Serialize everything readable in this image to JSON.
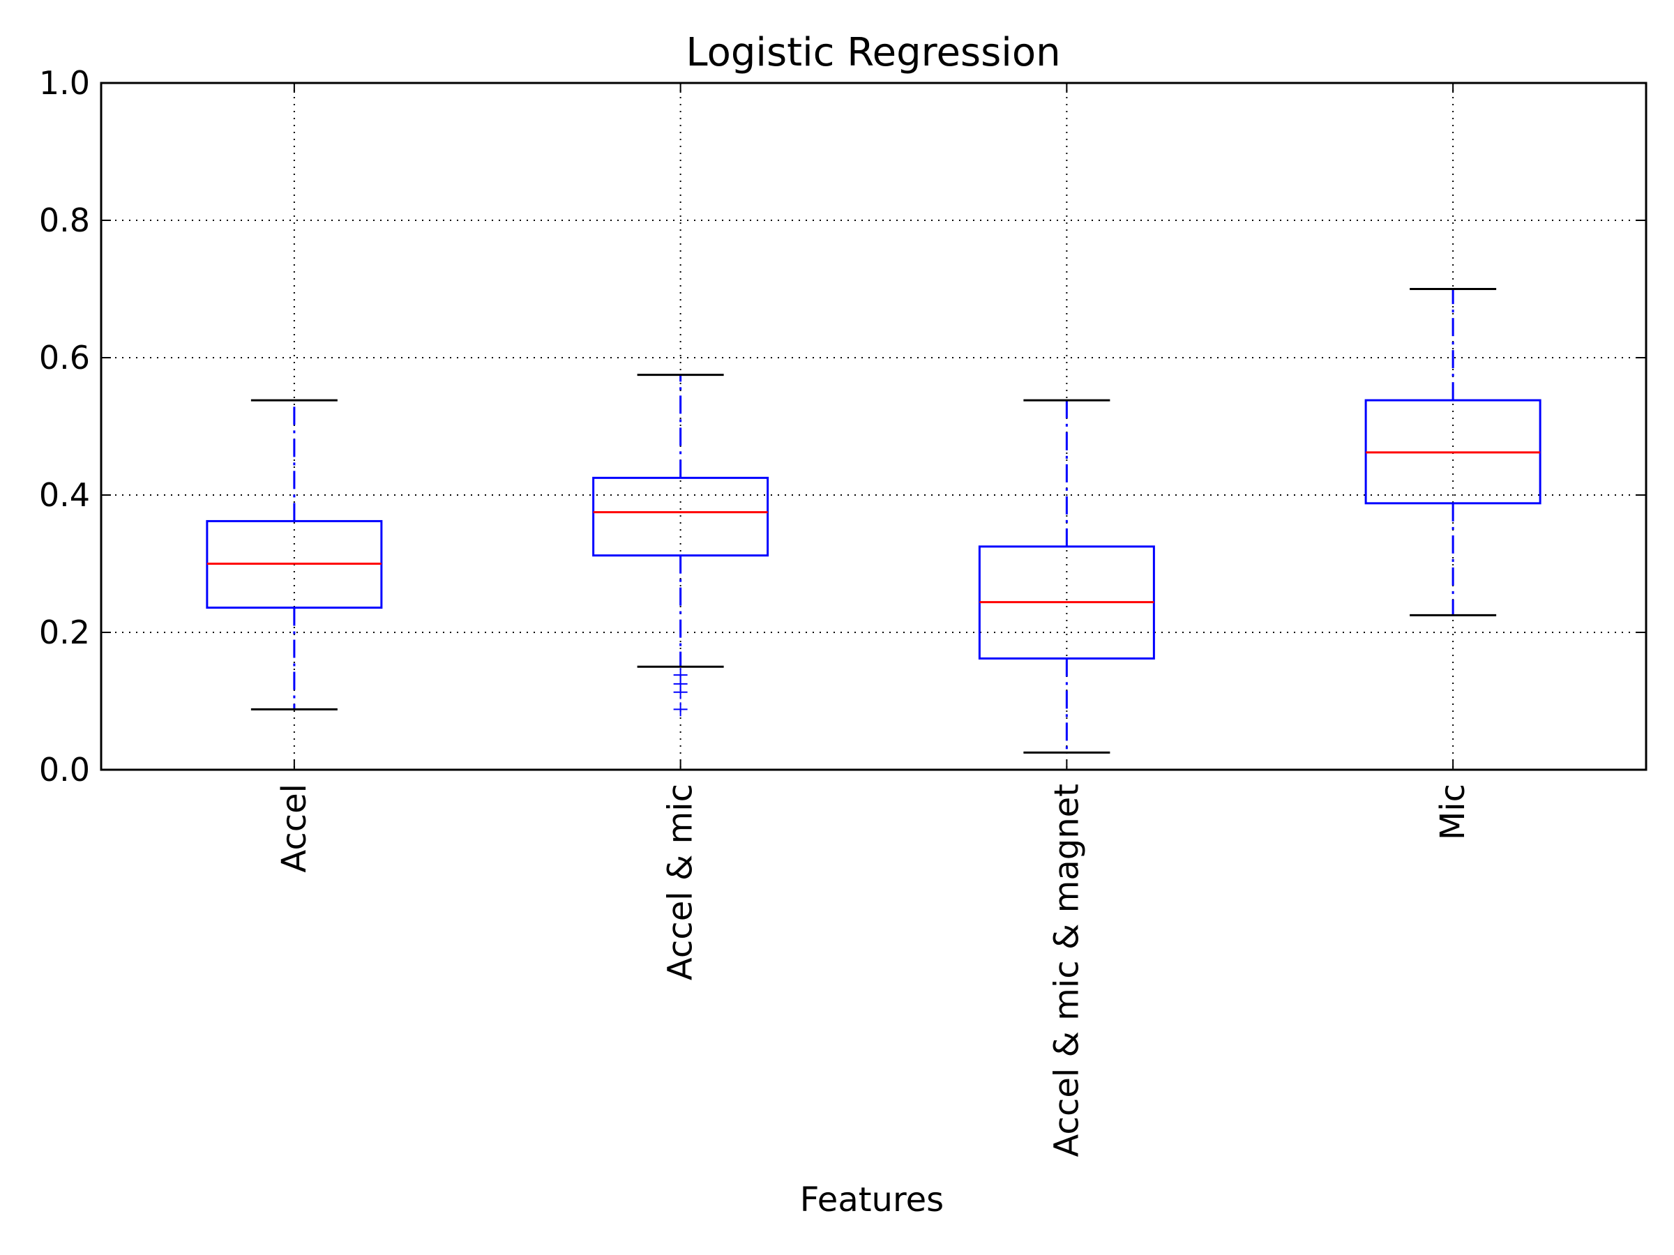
{
  "chart_data": {
    "type": "box",
    "title": "Logistic Regression",
    "xlabel": "Features",
    "ylabel": "",
    "ylim": [
      0.0,
      1.0
    ],
    "yticks": [
      "0.0",
      "0.2",
      "0.4",
      "0.6",
      "0.8",
      "1.0"
    ],
    "grid": true,
    "categories": [
      "Accel",
      "Accel & mic",
      "Accel & mic & magnet",
      "Mic"
    ],
    "boxes": [
      {
        "name": "Accel",
        "whisker_low": 0.088,
        "q1": 0.236,
        "median": 0.3,
        "q3": 0.362,
        "whisker_high": 0.538,
        "outliers": []
      },
      {
        "name": "Accel & mic",
        "whisker_low": 0.15,
        "q1": 0.312,
        "median": 0.375,
        "q3": 0.425,
        "whisker_high": 0.575,
        "outliers": [
          0.138,
          0.125,
          0.113,
          0.088
        ]
      },
      {
        "name": "Accel & mic & magnet",
        "whisker_low": 0.025,
        "q1": 0.162,
        "median": 0.244,
        "q3": 0.325,
        "whisker_high": 0.538,
        "outliers": []
      },
      {
        "name": "Mic",
        "whisker_low": 0.225,
        "q1": 0.388,
        "median": 0.462,
        "q3": 0.538,
        "whisker_high": 0.7,
        "outliers": []
      }
    ],
    "colors": {
      "box": "#0000ff",
      "median": "#ff0000",
      "whisker": "#0000ff",
      "cap": "#000000",
      "outlier": "#0000ff",
      "grid": "#000000",
      "axes": "#000000"
    }
  }
}
